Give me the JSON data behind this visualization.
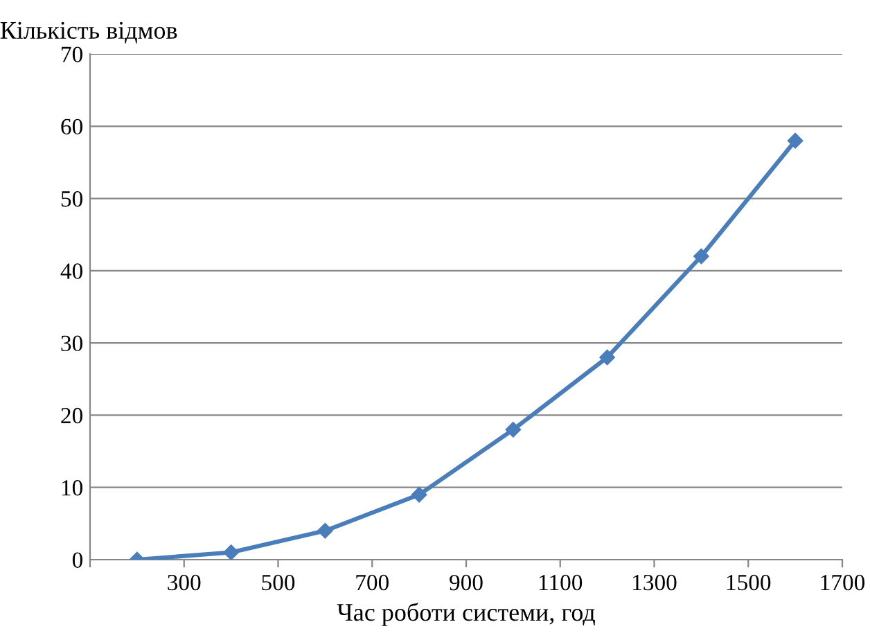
{
  "chart_data": {
    "type": "line",
    "xlabel": "Час роботи системи, год",
    "ylabel": "Кількість відмов",
    "x": [
      200,
      400,
      600,
      800,
      1000,
      1200,
      1400,
      1600
    ],
    "series": [
      {
        "color": "#4a7ebb",
        "values": [
          0,
          1,
          4,
          9,
          18,
          28,
          42,
          58
        ]
      }
    ],
    "xlim": [
      100,
      1700
    ],
    "xticks": [
      {
        "value": 100,
        "label": null
      },
      300,
      500,
      700,
      900,
      1100,
      1300,
      1500,
      1700
    ],
    "ylim": [
      0,
      70
    ],
    "yticks": [
      0,
      10,
      20,
      30,
      40,
      50,
      60,
      70
    ],
    "grid": "y",
    "marker": "diamond",
    "line_style": "solid",
    "legend": false
  }
}
